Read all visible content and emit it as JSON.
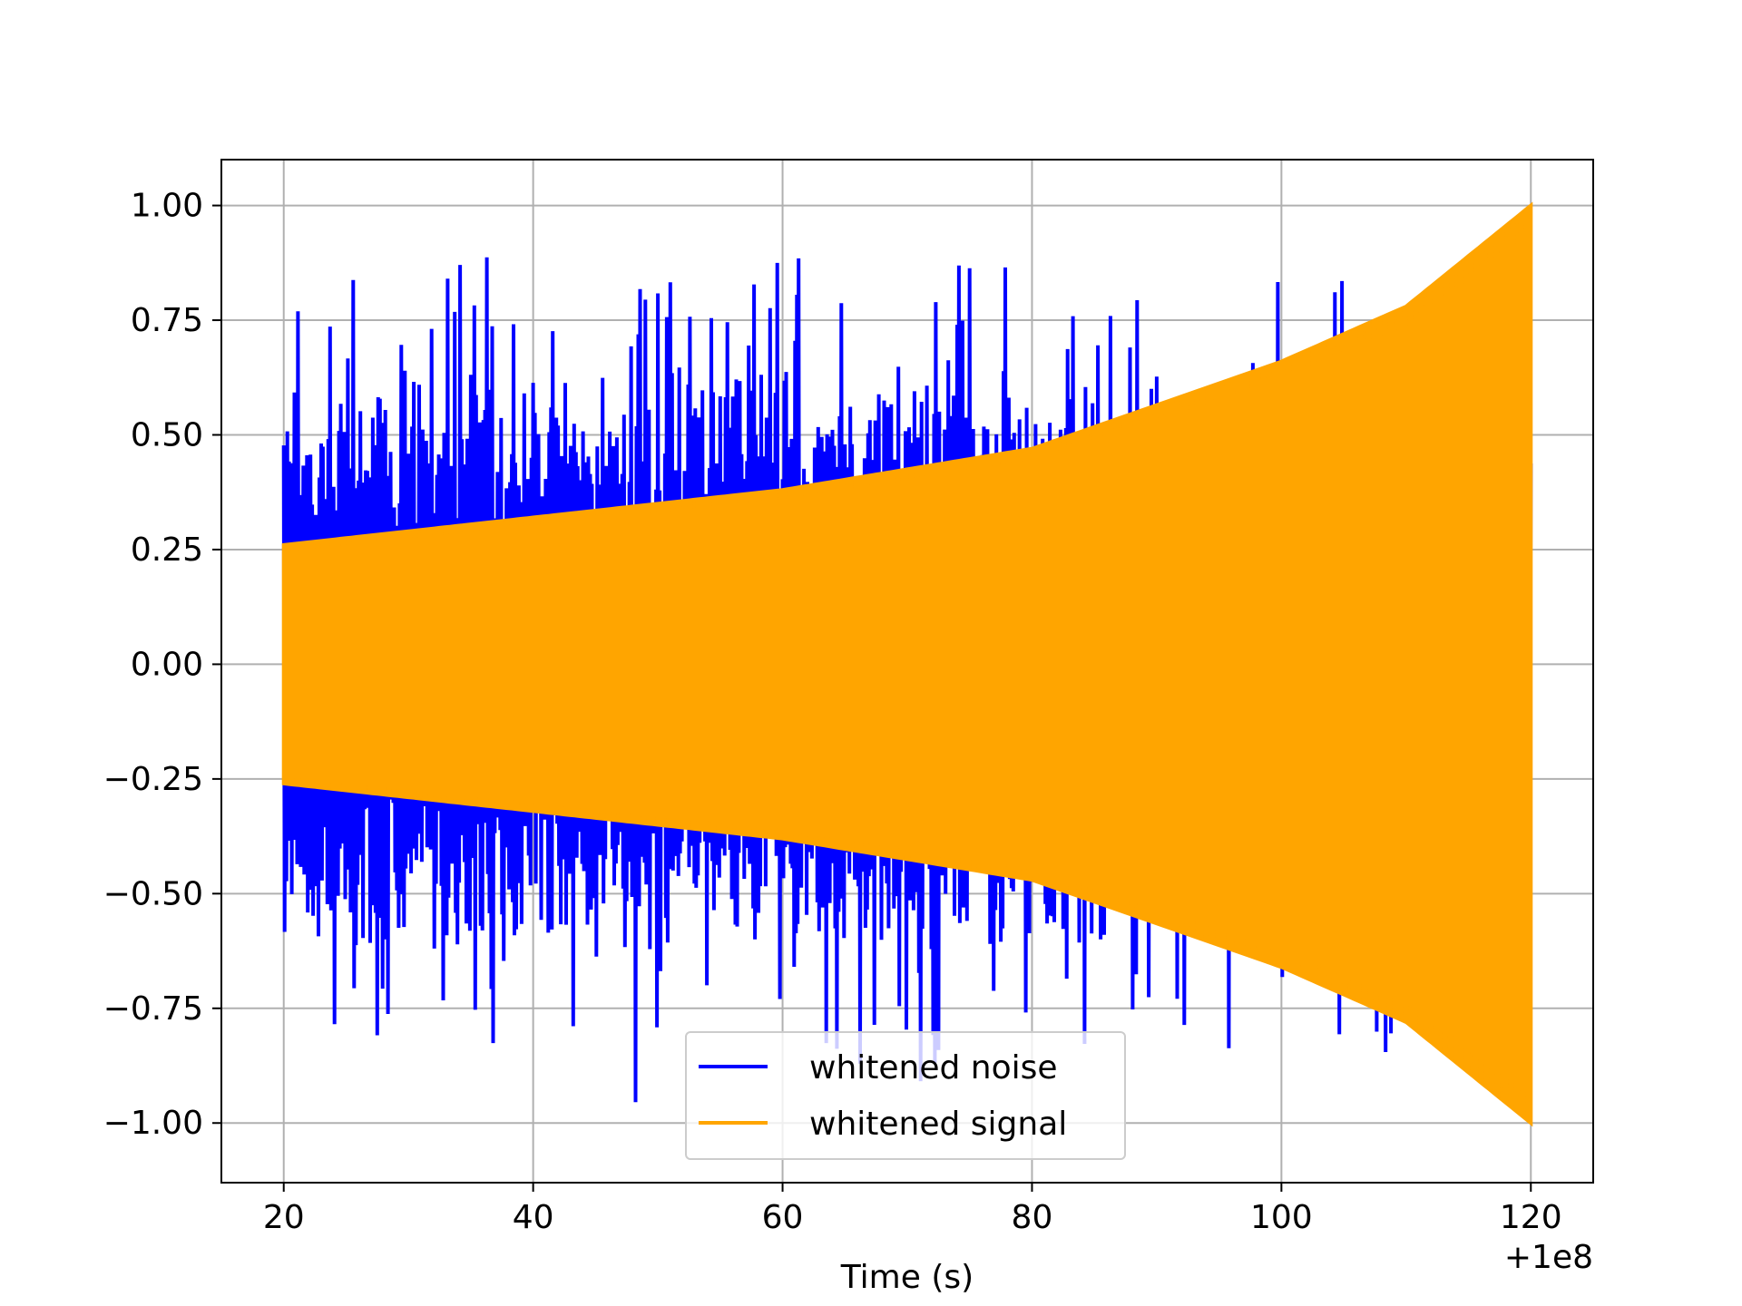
{
  "chart_data": {
    "type": "line",
    "title": "",
    "xlabel": "Time (s)",
    "ylabel": "",
    "x_offset_label": "+1e8",
    "xlim": [
      15,
      125
    ],
    "ylim": [
      -1.13,
      1.1
    ],
    "xticks": [
      20,
      40,
      60,
      80,
      100,
      120
    ],
    "xtick_labels": [
      "20",
      "40",
      "60",
      "80",
      "100",
      "120"
    ],
    "yticks": [
      1.0,
      0.75,
      0.5,
      0.25,
      0.0,
      -0.25,
      -0.5,
      -0.75,
      -1.0
    ],
    "ytick_labels": [
      "1.00",
      "0.75",
      "0.50",
      "0.25",
      "0.00",
      "−0.25",
      "−0.50",
      "−0.75",
      "−1.00"
    ],
    "grid": true,
    "legend_position": "bottom-center",
    "series": [
      {
        "name": "whitened noise",
        "color": "#0000ff",
        "envelope": {
          "x": [
            20,
            30,
            40,
            50,
            60,
            70,
            80,
            90,
            100,
            110,
            120
          ],
          "upper": [
            0.88,
            0.86,
            0.92,
            0.83,
            0.91,
            0.86,
            0.92,
            0.78,
            0.91,
            0.82,
            0.97
          ],
          "lower": [
            -0.83,
            -0.81,
            -0.94,
            -1.0,
            -0.91,
            -0.93,
            -0.87,
            -0.83,
            -0.88,
            -0.85,
            -0.9
          ]
        },
        "typical_band": [
          0.25,
          0.5
        ]
      },
      {
        "name": "whitened signal",
        "color": "#ffa500",
        "envelope": {
          "x": [
            20,
            40,
            60,
            80,
            100,
            110,
            120
          ],
          "upper": [
            0.26,
            0.32,
            0.38,
            0.47,
            0.66,
            0.78,
            1.0
          ],
          "lower": [
            -0.26,
            -0.32,
            -0.38,
            -0.47,
            -0.66,
            -0.78,
            -1.0
          ]
        }
      }
    ]
  }
}
